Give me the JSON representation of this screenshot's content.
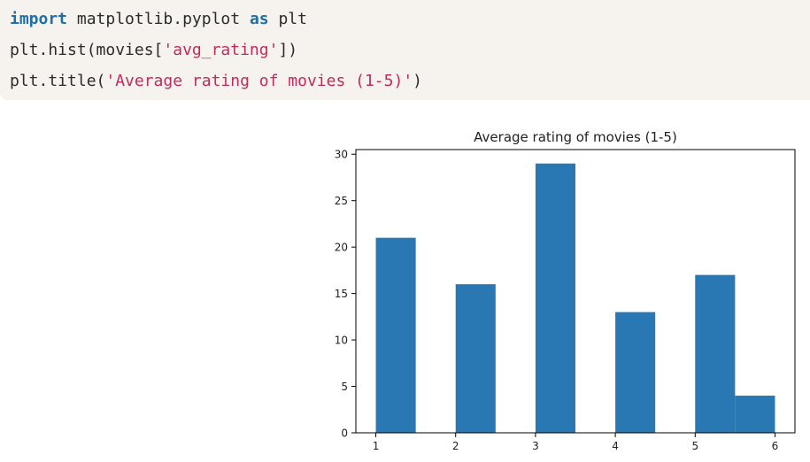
{
  "code": {
    "line1": {
      "kw1": "import",
      "mid": " matplotlib.pyplot ",
      "kw2": "as",
      "end": " plt"
    },
    "line2": {
      "pre": "plt.hist(movies[",
      "str": "'avg_rating'",
      "post": "])"
    },
    "line3": {
      "pre": "plt.title(",
      "str": "'Average rating of movies (1-5)'",
      "post": ")"
    }
  },
  "colors": {
    "code_bg": "#f6f2ed",
    "keyword": "#1f6fa8",
    "string": "#c22b5f",
    "bar": "#2a78b3"
  },
  "chart_data": {
    "type": "bar",
    "title": "Average rating of movies (1-5)",
    "xlabel": "",
    "ylabel": "",
    "xlim": [
      0.75,
      6.25
    ],
    "ylim": [
      0,
      30.5
    ],
    "xticks": [
      1,
      2,
      3,
      4,
      5,
      6
    ],
    "yticks": [
      0,
      5,
      10,
      15,
      20,
      25,
      30
    ],
    "bins": [
      {
        "x0": 1.0,
        "x1": 1.5,
        "value": 21
      },
      {
        "x0": 1.5,
        "x1": 2.0,
        "value": 0
      },
      {
        "x0": 2.0,
        "x1": 2.5,
        "value": 16
      },
      {
        "x0": 2.5,
        "x1": 3.0,
        "value": 0
      },
      {
        "x0": 3.0,
        "x1": 3.5,
        "value": 29
      },
      {
        "x0": 3.5,
        "x1": 4.0,
        "value": 0
      },
      {
        "x0": 4.0,
        "x1": 4.5,
        "value": 13
      },
      {
        "x0": 4.5,
        "x1": 5.0,
        "value": 0
      },
      {
        "x0": 5.0,
        "x1": 5.5,
        "value": 17
      },
      {
        "x0": 5.5,
        "x1": 6.0,
        "value": 4
      }
    ],
    "grid": false,
    "legend": "none"
  }
}
